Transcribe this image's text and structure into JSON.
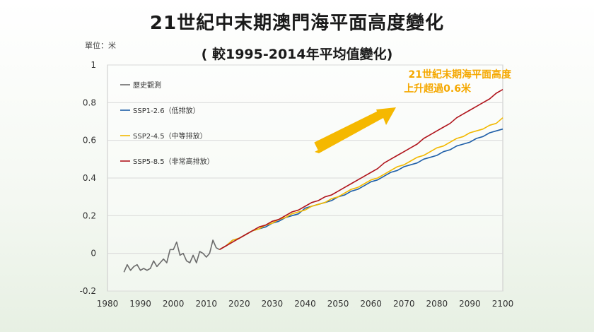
{
  "chart_data": {
    "type": "line",
    "title": "21世紀中末期澳門海平面高度變化",
    "subtitle": "( 較1995-2014年平均值變化)",
    "unit_label": "單位：米",
    "xlim": [
      1980,
      2100
    ],
    "ylim": [
      -0.2,
      1
    ],
    "x_ticks": [
      "1980",
      "1990",
      "2000",
      "2010",
      "2020",
      "2030",
      "2040",
      "2050",
      "2060",
      "2070",
      "2080",
      "2090",
      "2100"
    ],
    "y_ticks": [
      "-0.2",
      "0",
      "0.2",
      "0.4",
      "0.6",
      "0.8",
      "1"
    ],
    "grid": "horizontal",
    "legend_position": "top-left",
    "annotation": {
      "line1": "21世紀末期海平面高度",
      "line2": "上升超過0.6米",
      "color": "#f5b800"
    },
    "series": [
      {
        "name": "歷史觀測",
        "color": "#6b6b6b",
        "points": [
          [
            1985,
            -0.1
          ],
          [
            1986,
            -0.06
          ],
          [
            1987,
            -0.09
          ],
          [
            1988,
            -0.07
          ],
          [
            1989,
            -0.06
          ],
          [
            1990,
            -0.09
          ],
          [
            1991,
            -0.08
          ],
          [
            1992,
            -0.09
          ],
          [
            1993,
            -0.08
          ],
          [
            1994,
            -0.04
          ],
          [
            1995,
            -0.07
          ],
          [
            1996,
            -0.05
          ],
          [
            1997,
            -0.03
          ],
          [
            1998,
            -0.05
          ],
          [
            1999,
            0.02
          ],
          [
            2000,
            0.02
          ],
          [
            2001,
            0.06
          ],
          [
            2002,
            -0.01
          ],
          [
            2003,
            0.0
          ],
          [
            2004,
            -0.04
          ],
          [
            2005,
            -0.05
          ],
          [
            2006,
            -0.01
          ],
          [
            2007,
            -0.05
          ],
          [
            2008,
            0.01
          ],
          [
            2009,
            0.0
          ],
          [
            2010,
            -0.02
          ],
          [
            2011,
            0.0
          ],
          [
            2012,
            0.07
          ],
          [
            2013,
            0.03
          ],
          [
            2014,
            0.02
          ]
        ]
      },
      {
        "name": "SSP1-2.6（低排放）",
        "color": "#1f5fa8",
        "points": [
          [
            2014,
            0.02
          ],
          [
            2016,
            0.04
          ],
          [
            2018,
            0.07
          ],
          [
            2020,
            0.08
          ],
          [
            2022,
            0.1
          ],
          [
            2024,
            0.12
          ],
          [
            2026,
            0.13
          ],
          [
            2028,
            0.14
          ],
          [
            2030,
            0.16
          ],
          [
            2032,
            0.17
          ],
          [
            2034,
            0.19
          ],
          [
            2036,
            0.2
          ],
          [
            2038,
            0.21
          ],
          [
            2040,
            0.24
          ],
          [
            2042,
            0.25
          ],
          [
            2044,
            0.26
          ],
          [
            2046,
            0.27
          ],
          [
            2048,
            0.28
          ],
          [
            2050,
            0.3
          ],
          [
            2052,
            0.31
          ],
          [
            2054,
            0.33
          ],
          [
            2056,
            0.34
          ],
          [
            2058,
            0.36
          ],
          [
            2060,
            0.38
          ],
          [
            2062,
            0.39
          ],
          [
            2064,
            0.41
          ],
          [
            2066,
            0.43
          ],
          [
            2068,
            0.44
          ],
          [
            2070,
            0.46
          ],
          [
            2072,
            0.47
          ],
          [
            2074,
            0.48
          ],
          [
            2076,
            0.5
          ],
          [
            2078,
            0.51
          ],
          [
            2080,
            0.52
          ],
          [
            2082,
            0.54
          ],
          [
            2084,
            0.55
          ],
          [
            2086,
            0.57
          ],
          [
            2088,
            0.58
          ],
          [
            2090,
            0.59
          ],
          [
            2092,
            0.61
          ],
          [
            2094,
            0.62
          ],
          [
            2096,
            0.64
          ],
          [
            2098,
            0.65
          ],
          [
            2100,
            0.66
          ]
        ]
      },
      {
        "name": "SSP2-4.5（中等排放）",
        "color": "#f2b800",
        "points": [
          [
            2014,
            0.02
          ],
          [
            2016,
            0.04
          ],
          [
            2018,
            0.07
          ],
          [
            2020,
            0.08
          ],
          [
            2022,
            0.1
          ],
          [
            2024,
            0.12
          ],
          [
            2026,
            0.13
          ],
          [
            2028,
            0.15
          ],
          [
            2030,
            0.16
          ],
          [
            2032,
            0.18
          ],
          [
            2034,
            0.19
          ],
          [
            2036,
            0.21
          ],
          [
            2038,
            0.22
          ],
          [
            2040,
            0.23
          ],
          [
            2042,
            0.25
          ],
          [
            2044,
            0.26
          ],
          [
            2046,
            0.27
          ],
          [
            2048,
            0.29
          ],
          [
            2050,
            0.3
          ],
          [
            2052,
            0.32
          ],
          [
            2054,
            0.34
          ],
          [
            2056,
            0.35
          ],
          [
            2058,
            0.37
          ],
          [
            2060,
            0.39
          ],
          [
            2062,
            0.4
          ],
          [
            2064,
            0.42
          ],
          [
            2066,
            0.44
          ],
          [
            2068,
            0.46
          ],
          [
            2070,
            0.47
          ],
          [
            2072,
            0.49
          ],
          [
            2074,
            0.51
          ],
          [
            2076,
            0.52
          ],
          [
            2078,
            0.54
          ],
          [
            2080,
            0.56
          ],
          [
            2082,
            0.57
          ],
          [
            2084,
            0.59
          ],
          [
            2086,
            0.61
          ],
          [
            2088,
            0.62
          ],
          [
            2090,
            0.64
          ],
          [
            2092,
            0.65
          ],
          [
            2094,
            0.66
          ],
          [
            2096,
            0.68
          ],
          [
            2098,
            0.69
          ],
          [
            2100,
            0.72
          ]
        ]
      },
      {
        "name": "SSP5-8.5（非常高排放）",
        "color": "#b0141c",
        "points": [
          [
            2014,
            0.02
          ],
          [
            2016,
            0.04
          ],
          [
            2018,
            0.06
          ],
          [
            2020,
            0.08
          ],
          [
            2022,
            0.1
          ],
          [
            2024,
            0.12
          ],
          [
            2026,
            0.14
          ],
          [
            2028,
            0.15
          ],
          [
            2030,
            0.17
          ],
          [
            2032,
            0.18
          ],
          [
            2034,
            0.2
          ],
          [
            2036,
            0.22
          ],
          [
            2038,
            0.23
          ],
          [
            2040,
            0.25
          ],
          [
            2042,
            0.27
          ],
          [
            2044,
            0.28
          ],
          [
            2046,
            0.3
          ],
          [
            2048,
            0.31
          ],
          [
            2050,
            0.33
          ],
          [
            2052,
            0.35
          ],
          [
            2054,
            0.37
          ],
          [
            2056,
            0.39
          ],
          [
            2058,
            0.41
          ],
          [
            2060,
            0.43
          ],
          [
            2062,
            0.45
          ],
          [
            2064,
            0.48
          ],
          [
            2066,
            0.5
          ],
          [
            2068,
            0.52
          ],
          [
            2070,
            0.54
          ],
          [
            2072,
            0.56
          ],
          [
            2074,
            0.58
          ],
          [
            2076,
            0.61
          ],
          [
            2078,
            0.63
          ],
          [
            2080,
            0.65
          ],
          [
            2082,
            0.67
          ],
          [
            2084,
            0.69
          ],
          [
            2086,
            0.72
          ],
          [
            2088,
            0.74
          ],
          [
            2090,
            0.76
          ],
          [
            2092,
            0.78
          ],
          [
            2094,
            0.8
          ],
          [
            2096,
            0.82
          ],
          [
            2098,
            0.85
          ],
          [
            2100,
            0.87
          ]
        ]
      }
    ]
  }
}
